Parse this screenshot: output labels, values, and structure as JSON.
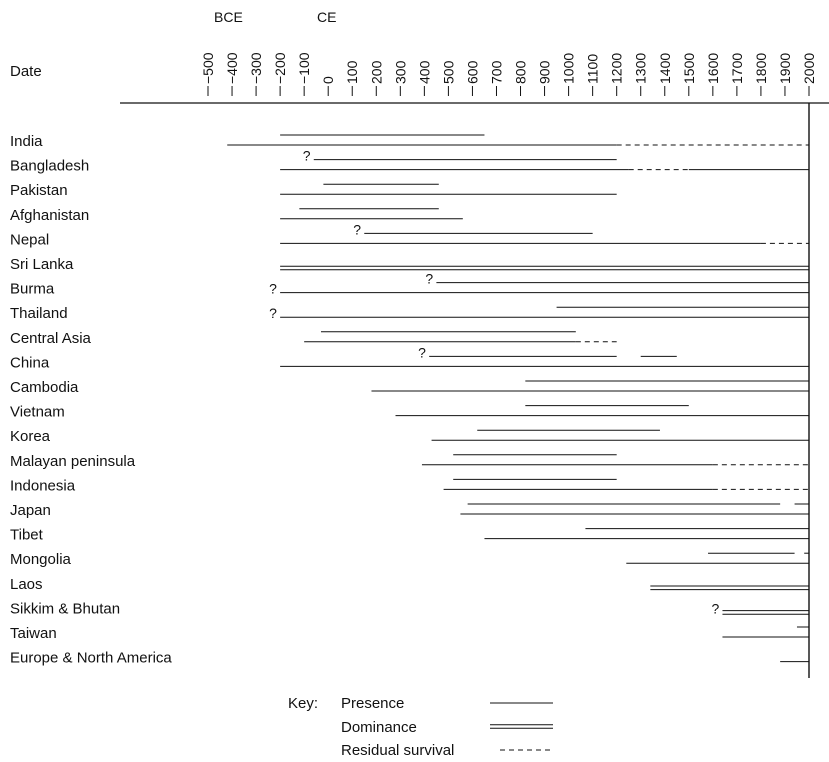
{
  "chart_data": {
    "type": "timeline",
    "era_labels": [
      "BCE",
      "CE"
    ],
    "axis_label": "Date",
    "ticks": [
      -500,
      -400,
      -300,
      -200,
      -100,
      0,
      100,
      200,
      300,
      400,
      500,
      600,
      700,
      800,
      900,
      1000,
      1100,
      1200,
      1300,
      1400,
      1500,
      1600,
      1700,
      1800,
      1900,
      2000
    ],
    "tick_labels": [
      "−500",
      "−400",
      "−300",
      "−200",
      "−100",
      "0",
      "100",
      "200",
      "300",
      "400",
      "500",
      "600",
      "700",
      "800",
      "900",
      "1000",
      "1100",
      "1200",
      "1300",
      "1400",
      "1500",
      "1600",
      "1700",
      "1800",
      "1900",
      "2000"
    ],
    "xlim": [
      -530,
      2030
    ],
    "rows": [
      {
        "label": "India",
        "segments": [
          {
            "kind": "presence",
            "start": -200,
            "end": 650
          },
          {
            "kind": "presence",
            "start": -420,
            "end": 1200
          },
          {
            "kind": "residual",
            "start": 1200,
            "end": 2000
          }
        ]
      },
      {
        "label": "Bangladesh",
        "segments": [
          {
            "kind": "presence",
            "start": -60,
            "end": 1200,
            "uncertain_start": true
          },
          {
            "kind": "presence",
            "start": -200,
            "end": 1250
          },
          {
            "kind": "residual",
            "start": 1250,
            "end": 1500
          },
          {
            "kind": "presence",
            "start": 1500,
            "end": 2000
          }
        ]
      },
      {
        "label": "Pakistan",
        "segments": [
          {
            "kind": "presence",
            "start": -20,
            "end": 460
          },
          {
            "kind": "presence",
            "start": -200,
            "end": 1200
          }
        ]
      },
      {
        "label": "Afghanistan",
        "segments": [
          {
            "kind": "presence",
            "start": -120,
            "end": 460
          },
          {
            "kind": "presence",
            "start": -200,
            "end": 560
          }
        ]
      },
      {
        "label": "Nepal",
        "segments": [
          {
            "kind": "presence",
            "start": 150,
            "end": 1100,
            "uncertain_start": true
          },
          {
            "kind": "presence",
            "start": -200,
            "end": 1800
          },
          {
            "kind": "residual",
            "start": 1800,
            "end": 2000
          }
        ]
      },
      {
        "label": "Sri Lanka",
        "segments": [
          {
            "kind": "dominance",
            "start": -200,
            "end": 2000
          }
        ]
      },
      {
        "label": "Burma",
        "segments": [
          {
            "kind": "presence",
            "start": 450,
            "end": 2000,
            "uncertain_start": true
          },
          {
            "kind": "presence",
            "start": -200,
            "end": 2000,
            "uncertain_start": true
          }
        ]
      },
      {
        "label": "Thailand",
        "segments": [
          {
            "kind": "presence",
            "start": 950,
            "end": 2000
          },
          {
            "kind": "presence",
            "start": -200,
            "end": 2000,
            "uncertain_start": true
          }
        ]
      },
      {
        "label": "Central Asia",
        "segments": [
          {
            "kind": "presence",
            "start": -30,
            "end": 1030
          },
          {
            "kind": "presence",
            "start": -100,
            "end": 1030
          },
          {
            "kind": "residual",
            "start": 1030,
            "end": 1200
          }
        ]
      },
      {
        "label": "China",
        "segments": [
          {
            "kind": "presence",
            "start": 420,
            "end": 1200,
            "uncertain_start": true
          },
          {
            "kind": "presence",
            "start": 1300,
            "end": 1450
          },
          {
            "kind": "presence",
            "start": -200,
            "end": 2000
          }
        ]
      },
      {
        "label": "Cambodia",
        "segments": [
          {
            "kind": "presence",
            "start": 820,
            "end": 2000
          },
          {
            "kind": "presence",
            "start": 180,
            "end": 2000
          }
        ]
      },
      {
        "label": "Vietnam",
        "segments": [
          {
            "kind": "presence",
            "start": 820,
            "end": 1500
          },
          {
            "kind": "presence",
            "start": 280,
            "end": 2000
          }
        ]
      },
      {
        "label": "Korea",
        "segments": [
          {
            "kind": "presence",
            "start": 620,
            "end": 1380
          },
          {
            "kind": "presence",
            "start": 430,
            "end": 2000
          }
        ]
      },
      {
        "label": "Malayan peninsula",
        "segments": [
          {
            "kind": "presence",
            "start": 520,
            "end": 1200
          },
          {
            "kind": "presence",
            "start": 390,
            "end": 1600
          },
          {
            "kind": "residual",
            "start": 1600,
            "end": 2000
          }
        ]
      },
      {
        "label": "Indonesia",
        "segments": [
          {
            "kind": "presence",
            "start": 520,
            "end": 1200
          },
          {
            "kind": "presence",
            "start": 480,
            "end": 1600
          },
          {
            "kind": "residual",
            "start": 1600,
            "end": 2000
          }
        ]
      },
      {
        "label": "Japan",
        "segments": [
          {
            "kind": "presence",
            "start": 580,
            "end": 1880
          },
          {
            "kind": "presence",
            "start": 1940,
            "end": 2000
          },
          {
            "kind": "presence",
            "start": 550,
            "end": 2000
          }
        ]
      },
      {
        "label": "Tibet",
        "segments": [
          {
            "kind": "presence",
            "start": 1070,
            "end": 2000
          },
          {
            "kind": "presence",
            "start": 650,
            "end": 2000
          }
        ]
      },
      {
        "label": "Mongolia",
        "segments": [
          {
            "kind": "presence",
            "start": 1580,
            "end": 1940
          },
          {
            "kind": "presence",
            "start": 1980,
            "end": 2000
          },
          {
            "kind": "presence",
            "start": 1240,
            "end": 2000
          }
        ]
      },
      {
        "label": "Laos",
        "segments": [
          {
            "kind": "dominance",
            "start": 1340,
            "end": 2000
          }
        ]
      },
      {
        "label": "Sikkim & Bhutan",
        "segments": [
          {
            "kind": "dominance",
            "start": 1640,
            "end": 2000,
            "uncertain_start": true
          }
        ]
      },
      {
        "label": "Taiwan",
        "segments": [
          {
            "kind": "presence",
            "start": 1950,
            "end": 2000
          },
          {
            "kind": "presence",
            "start": 1640,
            "end": 2000
          }
        ]
      },
      {
        "label": "Europe & North America",
        "segments": [
          {
            "kind": "presence",
            "start": 1880,
            "end": 2000
          }
        ]
      }
    ],
    "uncertain_marker": "?",
    "key": {
      "title": "Key:",
      "items": [
        {
          "kind": "presence",
          "label": "Presence"
        },
        {
          "kind": "dominance",
          "label": "Dominance"
        },
        {
          "kind": "residual",
          "label": "Residual survival"
        }
      ]
    },
    "line_color": "#111111"
  }
}
